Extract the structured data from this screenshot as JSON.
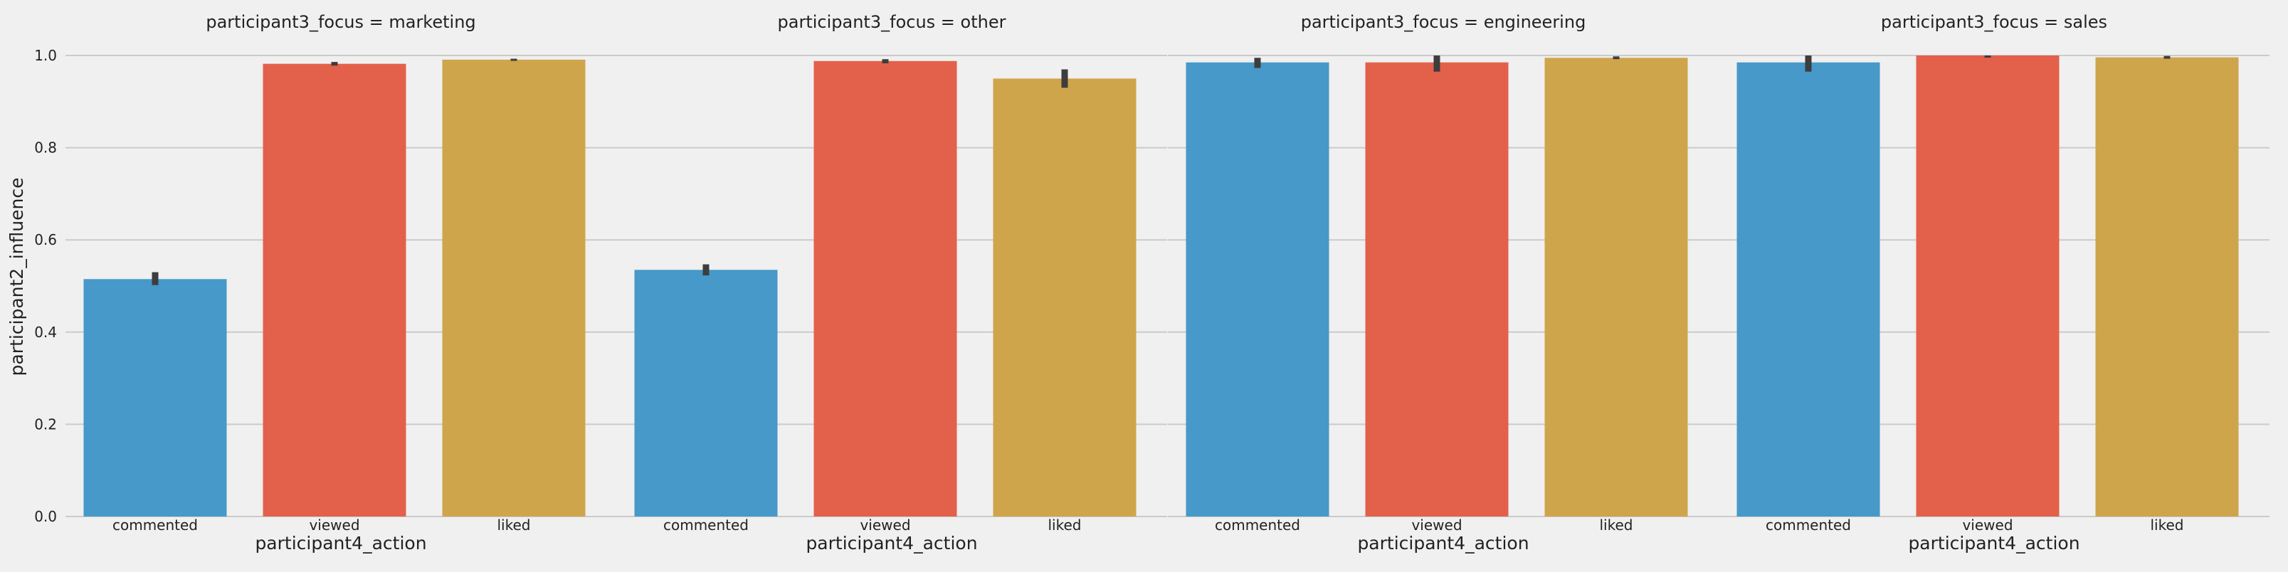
{
  "chart_data": {
    "type": "bar",
    "ylabel": "participant2_influence",
    "xlabel": "participant4_action",
    "ylim": [
      0,
      1.0
    ],
    "yticks": [
      "0.0",
      "0.2",
      "0.4",
      "0.6",
      "0.8",
      "1.0"
    ],
    "categories": [
      "commented",
      "viewed",
      "liked"
    ],
    "colors": [
      "#4699c8",
      "#e3614a",
      "#cfa54c"
    ],
    "grid": true,
    "panels": [
      {
        "title": "participant3_focus = marketing",
        "values": [
          0.515,
          0.982,
          0.991
        ],
        "ci": [
          [
            0.502,
            0.53
          ],
          [
            0.978,
            0.986
          ],
          [
            0.989,
            0.993
          ]
        ]
      },
      {
        "title": "participant3_focus = other",
        "values": [
          0.535,
          0.988,
          0.95
        ],
        "ci": [
          [
            0.523,
            0.547
          ],
          [
            0.983,
            0.992
          ],
          [
            0.93,
            0.97
          ]
        ]
      },
      {
        "title": "participant3_focus = engineering",
        "values": [
          0.985,
          0.985,
          0.995
        ],
        "ci": [
          [
            0.973,
            0.995
          ],
          [
            0.965,
            1.0
          ],
          [
            0.992,
            0.998
          ]
        ]
      },
      {
        "title": "participant3_focus = sales",
        "values": [
          0.985,
          1.0,
          0.996
        ],
        "ci": [
          [
            0.965,
            1.0
          ],
          [
            1.0,
            1.0
          ],
          [
            0.993,
            0.999
          ]
        ]
      }
    ]
  }
}
